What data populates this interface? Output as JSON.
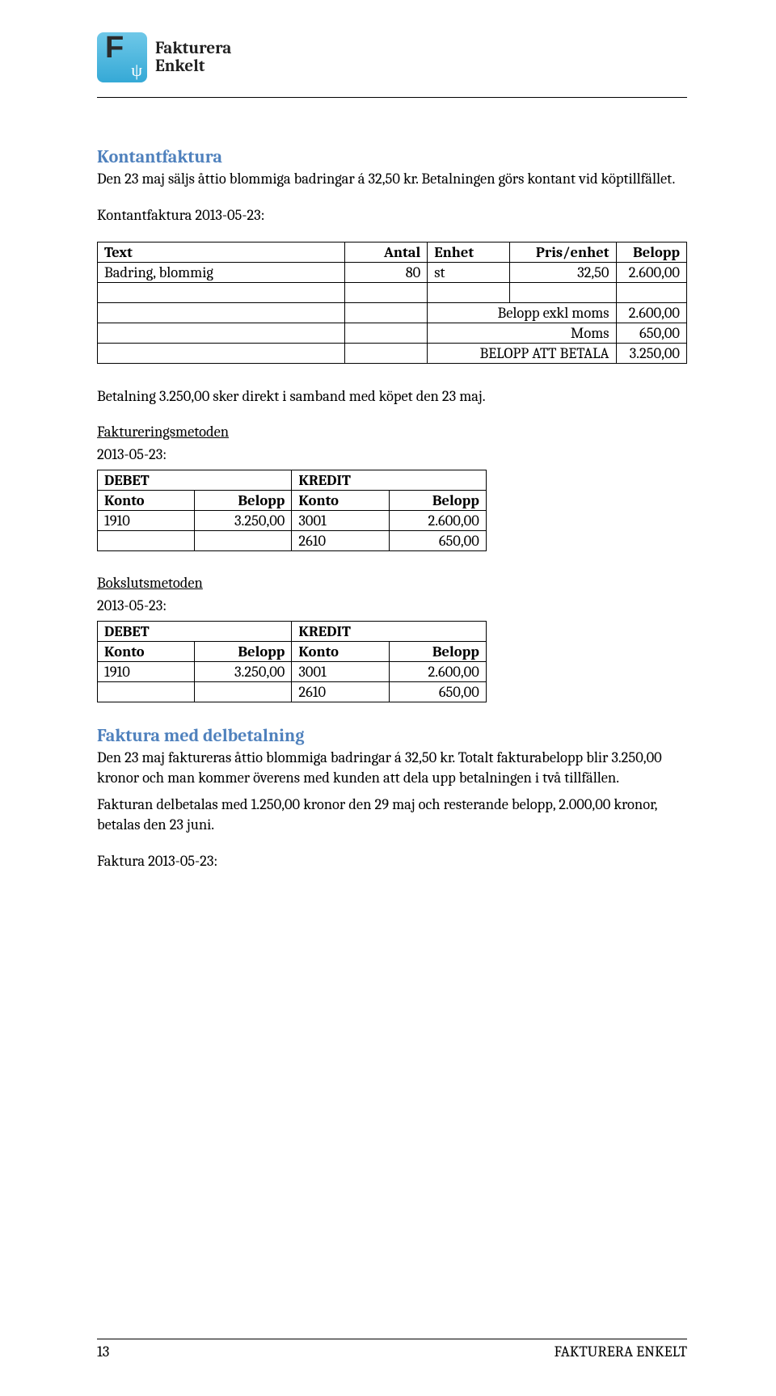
{
  "brand": {
    "name_line1": "Fakturera",
    "name_line2": "Enkelt"
  },
  "s1": {
    "heading": "Kontantfaktura",
    "p1": "Den 23 maj säljs åttio blommiga badringar á 32,50 kr. Betalningen görs kontant vid köptillfället.",
    "p2": "Kontantfaktura 2013-05-23:",
    "invoice": {
      "h_text": "Text",
      "h_antal": "Antal",
      "h_enhet": "Enhet",
      "h_pris": "Pris/enhet",
      "h_belopp": "Belopp",
      "row_text": "Badring, blommig",
      "row_antal": "80",
      "row_enhet": "st",
      "row_pris": "32,50",
      "row_belopp": "2.600,00",
      "l_exkl": "Belopp exkl moms",
      "v_exkl": "2.600,00",
      "l_moms": "Moms",
      "v_moms": "650,00",
      "l_total": "BELOPP ATT BETALA",
      "v_total": "3.250,00"
    },
    "p3": "Betalning 3.250,00 sker direkt i samband med köpet den 23 maj."
  },
  "fm": {
    "heading": "Faktureringsmetoden",
    "date": "2013-05-23:",
    "h_debet": "DEBET",
    "h_kredit": "KREDIT",
    "h_konto": "Konto",
    "h_belopp": "Belopp",
    "r1c1": "1910",
    "r1c2": "3.250,00",
    "r1c3": "3001",
    "r1c4": "2.600,00",
    "r2c3": "2610",
    "r2c4": "650,00"
  },
  "bm": {
    "heading": "Bokslutsmetoden",
    "date": "2013-05-23:",
    "h_debet": "DEBET",
    "h_kredit": "KREDIT",
    "h_konto": "Konto",
    "h_belopp": "Belopp",
    "r1c1": "1910",
    "r1c2": "3.250,00",
    "r1c3": "3001",
    "r1c4": "2.600,00",
    "r2c3": "2610",
    "r2c4": "650,00"
  },
  "s2": {
    "heading": "Faktura med delbetalning",
    "p1": "Den 23 maj faktureras åttio blommiga badringar á 32,50 kr. Totalt fakturabelopp blir 3.250,00 kronor och man kommer överens med kunden att dela upp betalningen i två tillfällen.",
    "p2": "Fakturan delbetalas med 1.250,00 kronor den 29 maj och resterande belopp, 2.000,00 kronor, betalas den 23 juni.",
    "p3": "Faktura 2013-05-23:"
  },
  "footer": {
    "page": "13",
    "title": "FAKTURERA ENKELT"
  },
  "colors": {
    "heading": "#4f81bd",
    "text": "#000000",
    "border": "#000000",
    "logo_top": "#6fc8e8",
    "logo_bottom": "#35a9d6"
  }
}
